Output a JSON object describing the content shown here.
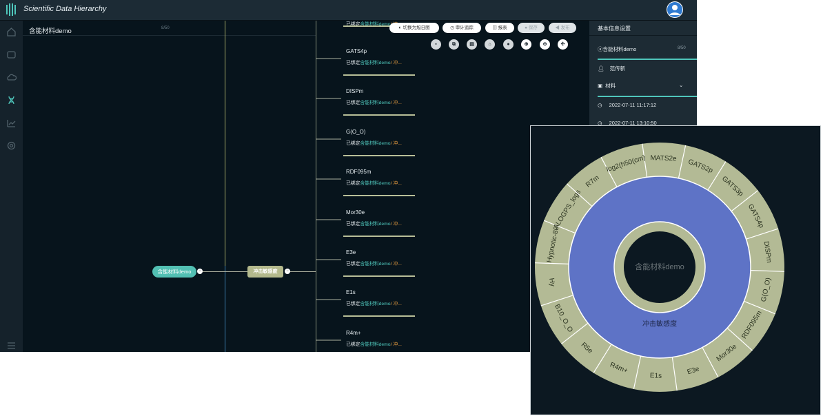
{
  "app": {
    "title": "Scientific Data Hierarchy"
  },
  "doc": {
    "title": "含能材料demo",
    "count": "8/50"
  },
  "toolbar": {
    "buttons": [
      "切换为旭日图",
      "审计追踪",
      "报表",
      "保存",
      "发布"
    ],
    "icons": [
      "file-icon",
      "copy-icon",
      "delete-icon",
      "lock-icon",
      "stop-icon",
      "zoom-in-icon",
      "zoom-out-icon",
      "center-icon"
    ]
  },
  "tree": {
    "root": "含能材料demo",
    "mid": "冲击敏感度",
    "bound_prefix": "已绑定",
    "bound_link": "含能材料demo",
    "bound_rest": "/ 冲...",
    "nodes": [
      "GATS4p",
      "DISPm",
      "G(O_O)",
      "RDF095m",
      "Mor30e",
      "E3e",
      "E1s",
      "R4m+"
    ]
  },
  "panel": {
    "title": "基本信息设置",
    "name": "含能材料demo",
    "name_count": "8/50",
    "owner": "范传新",
    "category": "材料",
    "created": "2022-07-11 11:17:12",
    "updated": "2022-07-11 13:10:50"
  },
  "sunburst": {
    "center": "含能材料demo",
    "middle": "冲击敏感度",
    "colors": {
      "outer": "#b3ba95",
      "middle": "#5e73c6",
      "inner": "#b3ba95",
      "bg": "#0c1821"
    },
    "outer_labels": [
      "MATS2e",
      "GATS2p",
      "GATS3p",
      "GATS4p",
      "DISPm",
      "G(O_O)",
      "RDF095m",
      "Mor30e",
      "E3e",
      "E1s",
      "R4m+",
      "R5e",
      "B10_O_O",
      "Hy",
      "Hypnotic-80",
      "ALOGPS_logs",
      "R7m",
      "log2(h50(cm)"
    ]
  }
}
